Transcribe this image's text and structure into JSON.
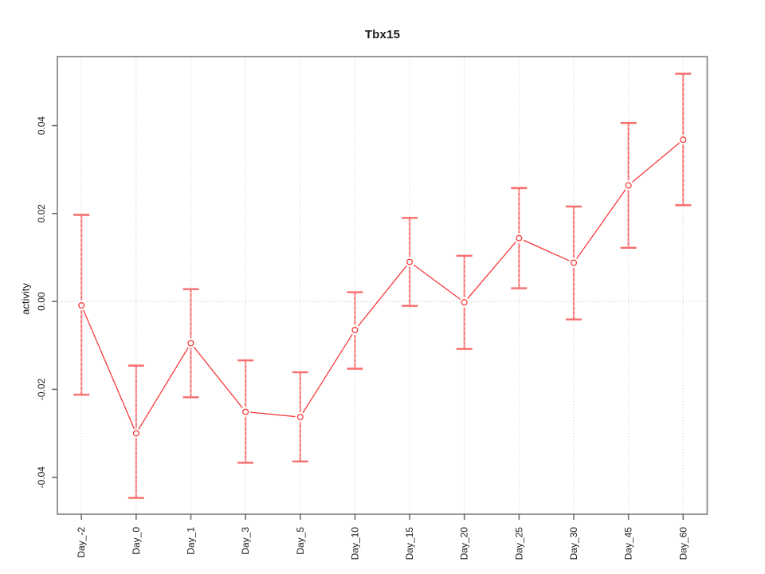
{
  "figure": {
    "title": "Tbx15",
    "ylabel": "activity",
    "background": "#ffffff"
  },
  "colors": {
    "line": "#f83a3a",
    "point_fill": "#ffffff",
    "error_band": "#fb9d9d",
    "error_dash": "#f85050",
    "error_cap": "#f96c6c",
    "grid": "#d6d6d6",
    "zero_line": "#c9c9c9",
    "box": "#8c8c8c",
    "tick": "#6e6e6e",
    "text": "#1a1a1a"
  },
  "chart_data": {
    "type": "line",
    "title": "Tbx15",
    "xlabel": "",
    "ylabel": "activity",
    "categories": [
      "Day_-2",
      "Day_0",
      "Day_1",
      "Day_3",
      "Day_5",
      "Day_10",
      "Day_15",
      "Day_20",
      "Day_25",
      "Day_30",
      "Day_45",
      "Day_60"
    ],
    "series": [
      {
        "name": "Tbx15 activity",
        "values": [
          -0.0009,
          -0.03,
          -0.0095,
          -0.0251,
          -0.0263,
          -0.0065,
          0.009,
          -0.0002,
          0.0144,
          0.0088,
          0.0264,
          0.0368
        ],
        "error_low": [
          -0.0212,
          -0.0447,
          -0.0218,
          -0.0367,
          -0.0364,
          -0.0153,
          -0.001,
          -0.0108,
          0.003,
          -0.0041,
          0.0122,
          0.0219
        ],
        "error_high": [
          0.0197,
          -0.0146,
          0.0028,
          -0.0134,
          -0.0161,
          0.0021,
          0.019,
          0.0104,
          0.0258,
          0.0216,
          0.0406,
          0.0518
        ]
      }
    ],
    "yticks": {
      "values": [
        -0.04,
        -0.02,
        0,
        0.02,
        0.04
      ],
      "labels": [
        "-0.04",
        "-0.02",
        "0.00",
        "0.02",
        "0.04"
      ]
    },
    "ylim": [
      -0.0484,
      0.0557
    ],
    "grid": "vertical dotted gridline at each category; dotted horizontal line at y=0",
    "legend_position": "none",
    "point_style": "open-circle",
    "error_bars": true
  }
}
